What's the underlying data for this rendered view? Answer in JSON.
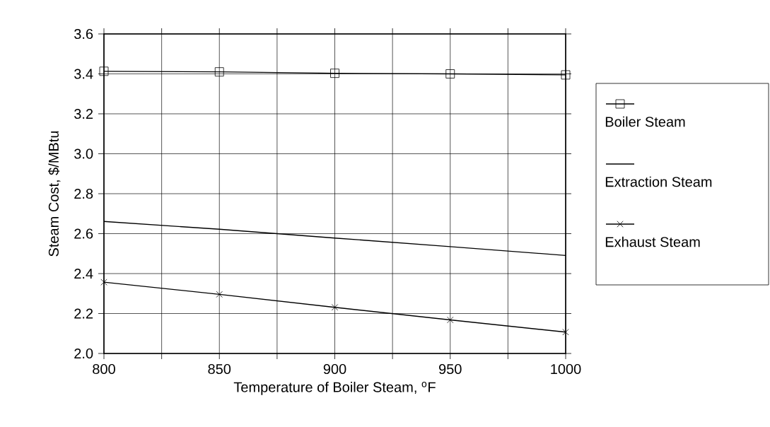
{
  "chart_data": {
    "type": "line",
    "xlabel": "Temperature of Boiler Steam, $^{o}$F",
    "ylabel": "Steam Cost, $/MBtu",
    "x": [
      800,
      850,
      900,
      950,
      1000
    ],
    "series": [
      {
        "name": "Boiler Steam",
        "color": "#000000",
        "marker": "square",
        "values": [
          3.413,
          3.41,
          3.403,
          3.4,
          3.395
        ]
      },
      {
        "name": "Extraction Steam",
        "color": "#000000",
        "marker": "none",
        "values": [
          2.661,
          2.622,
          2.578,
          2.535,
          2.491
        ]
      },
      {
        "name": "Exhaust Steam",
        "color": "#000000",
        "marker": "cross",
        "values": [
          2.357,
          2.296,
          2.231,
          2.168,
          2.107
        ]
      }
    ],
    "xlim": [
      800,
      1000
    ],
    "xticks": [
      800,
      {
        "value": 825,
        "label": null
      },
      850,
      {
        "value": 875,
        "label": null
      },
      900,
      {
        "value": 925,
        "label": null
      },
      950,
      {
        "value": 975,
        "label": null
      },
      1000
    ],
    "ylim": [
      2.0,
      3.6
    ],
    "yticks": [
      {
        "value": 2.0,
        "label": "2.0"
      },
      {
        "value": 2.2,
        "label": "2.2"
      },
      {
        "value": 2.4,
        "label": "2.4"
      },
      {
        "value": 2.6,
        "label": "2.6"
      },
      {
        "value": 2.8,
        "label": "2.8"
      },
      {
        "value": 3.0,
        "label": "3.0"
      },
      {
        "value": 3.2,
        "label": "3.2"
      },
      {
        "value": 3.4,
        "label": "3.4"
      },
      {
        "value": 3.6,
        "label": "3.6"
      }
    ],
    "grid": true,
    "legend": "right",
    "line_style": "solid"
  }
}
